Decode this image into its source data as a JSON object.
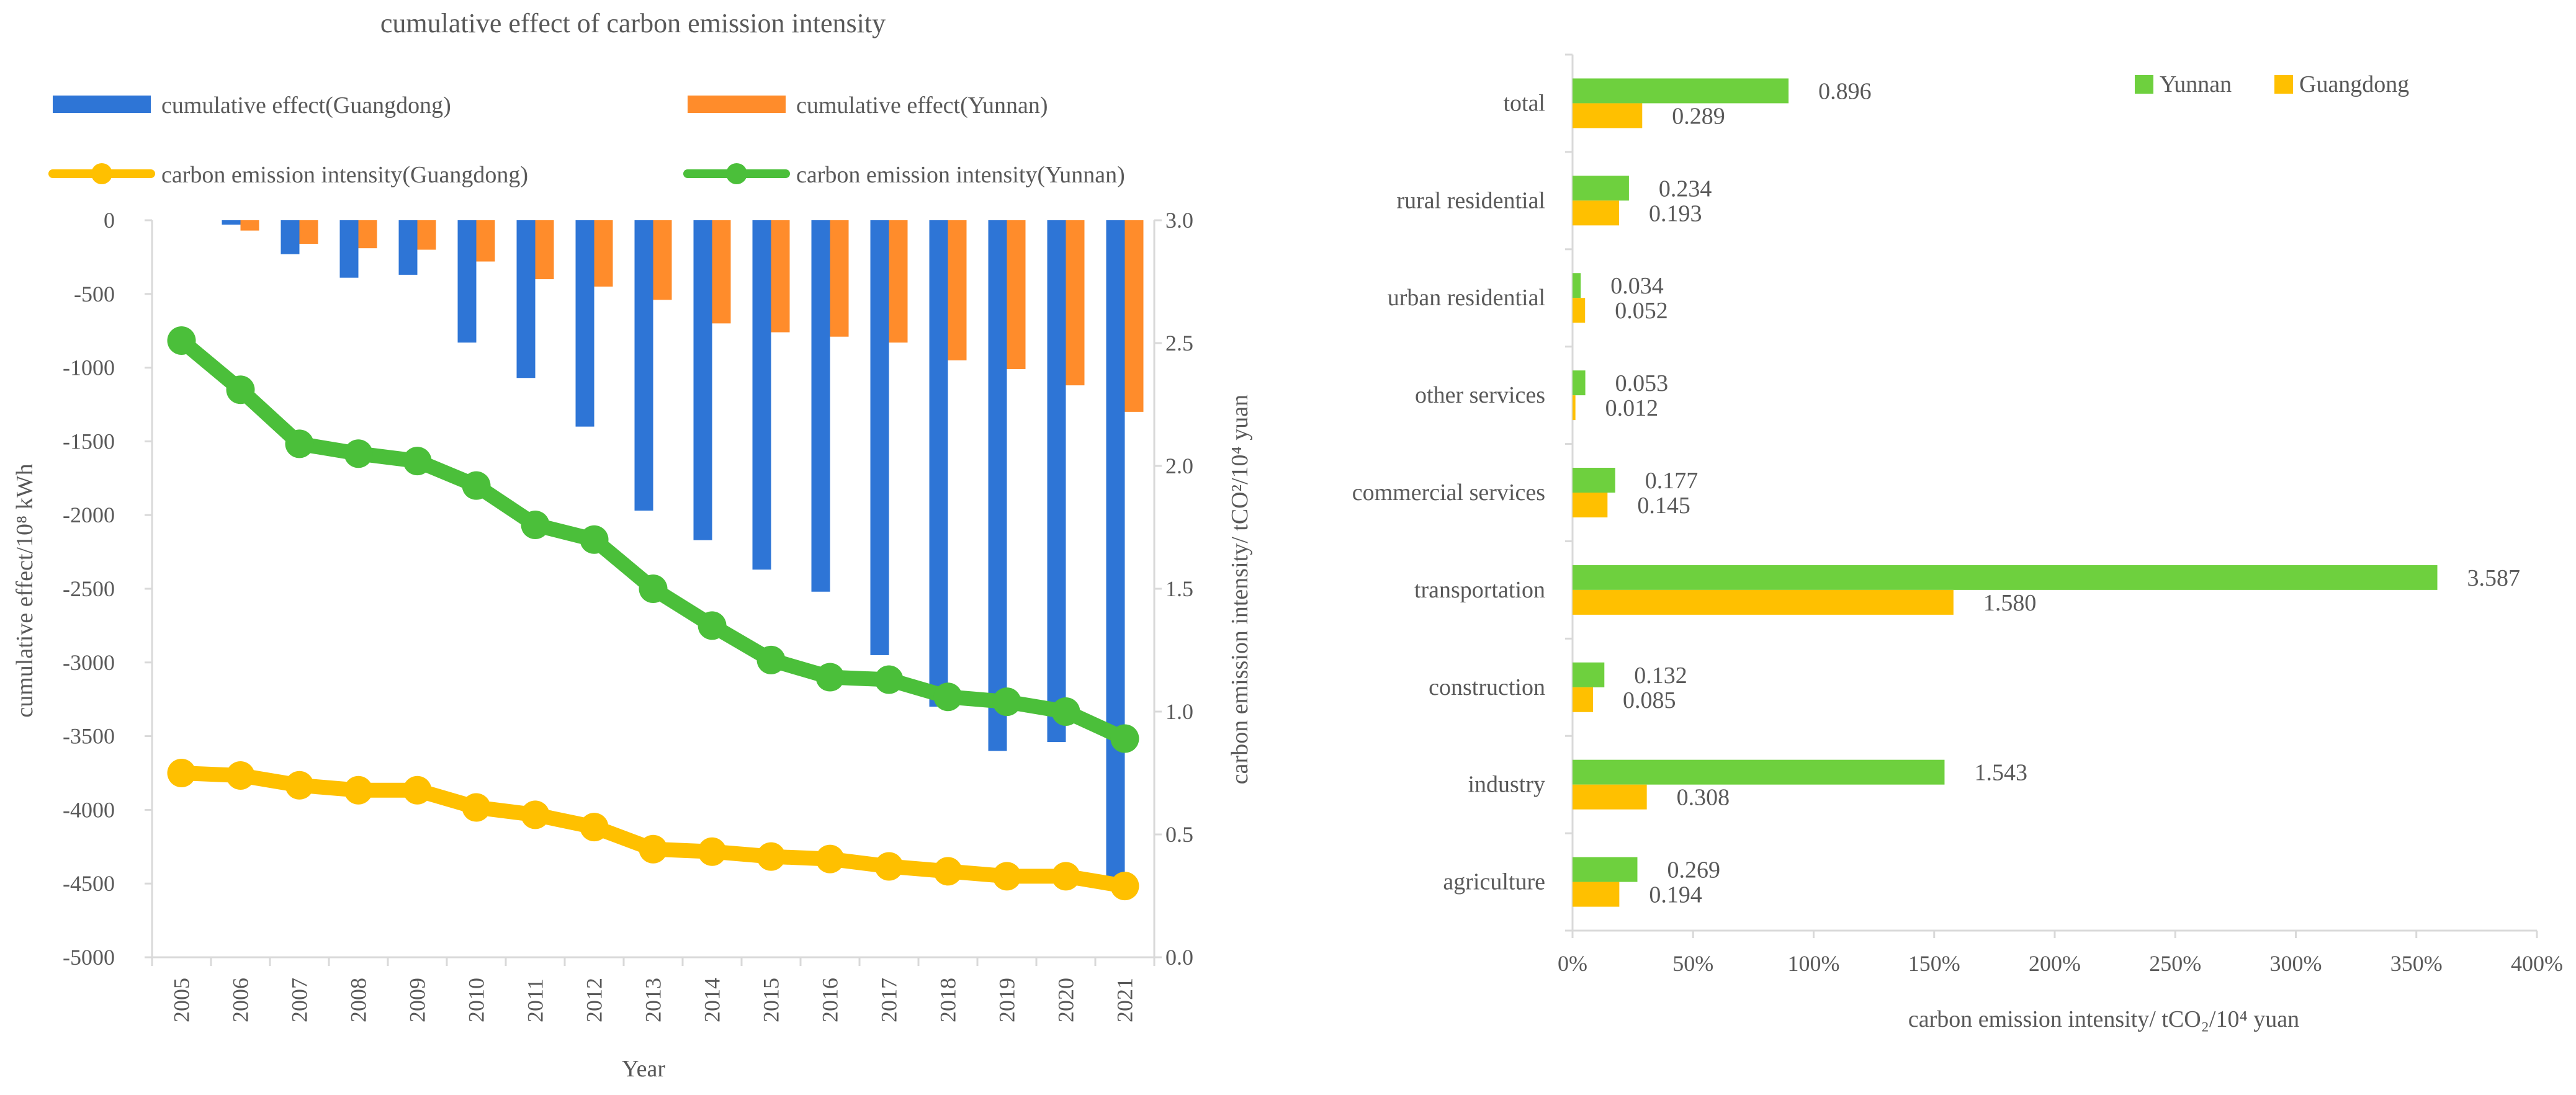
{
  "chart_data": [
    {
      "type": "bar+line",
      "title": "cumulative effect of carbon emission intensity",
      "xlabel": "Year",
      "ylabel_left": "cumulative effect/10⁸ kWh",
      "ylabel_right": "carbon emission intensity/ tCO²/10⁴ yuan",
      "ylim_left": [
        -5000,
        0
      ],
      "ylim_right": [
        0.0,
        3.0
      ],
      "yticks_left": [
        "0",
        "-500",
        "-1000",
        "-1500",
        "-2000",
        "-2500",
        "-3000",
        "-3500",
        "-4000",
        "-4500",
        "-5000"
      ],
      "yticks_right": [
        "3.0",
        "2.5",
        "2.0",
        "1.5",
        "1.0",
        "0.5",
        "0.0"
      ],
      "categories": [
        "2005",
        "2006",
        "2007",
        "2008",
        "2009",
        "2010",
        "2011",
        "2012",
        "2013",
        "2014",
        "2015",
        "2016",
        "2017",
        "2018",
        "2019",
        "2020",
        "2021"
      ],
      "bar_series": [
        {
          "name": "cumulative effect(Guangdong)",
          "color": "#2E75D6",
          "values": [
            0,
            -30,
            -230,
            -390,
            -370,
            -830,
            -1070,
            -1400,
            -1970,
            -2170,
            -2370,
            -2520,
            -2950,
            -3300,
            -3600,
            -3540,
            -4520
          ]
        },
        {
          "name": "cumulative effect(Yunnan)",
          "color": "#FF8C2B",
          "values": [
            0,
            -70,
            -160,
            -190,
            -200,
            -280,
            -400,
            -450,
            -540,
            -700,
            -760,
            -790,
            -830,
            -950,
            -1010,
            -1120,
            -1300
          ]
        }
      ],
      "line_series": [
        {
          "name": "carbon emission intensity(Guangdong)",
          "color": "#FFC000",
          "values": [
            0.75,
            0.74,
            0.7,
            0.68,
            0.68,
            0.61,
            0.58,
            0.53,
            0.44,
            0.43,
            0.41,
            0.4,
            0.37,
            0.35,
            0.33,
            0.33,
            0.29
          ]
        },
        {
          "name": "carbon emission intensity(Yunnan)",
          "color": "#4BBF3A",
          "values": [
            2.51,
            2.31,
            2.09,
            2.05,
            2.02,
            1.92,
            1.76,
            1.7,
            1.5,
            1.35,
            1.21,
            1.14,
            1.13,
            1.06,
            1.04,
            1.0,
            0.89
          ]
        }
      ]
    },
    {
      "type": "bar",
      "orientation": "horizontal",
      "xlabel": "carbon emission intensity/ tCO₂/10⁴ yuan",
      "xlim": [
        0,
        400
      ],
      "xticks": [
        "0%",
        "50%",
        "100%",
        "150%",
        "200%",
        "250%",
        "300%",
        "350%",
        "400%"
      ],
      "categories": [
        "total",
        "rural residential",
        "urban residential",
        "other services",
        "commercial services",
        "transportation",
        "construction",
        "industry",
        "agriculture"
      ],
      "series": [
        {
          "name": "Yunnan",
          "color": "#6ED03E",
          "values": [
            0.896,
            0.234,
            0.034,
            0.053,
            0.177,
            3.587,
            0.132,
            1.543,
            0.269
          ],
          "labels": [
            "0.896",
            "0.234",
            "0.034",
            "0.053",
            "0.177",
            "3.587",
            "0.132",
            "1.543",
            "0.269"
          ]
        },
        {
          "name": "Guangdong",
          "color": "#FFC000",
          "values": [
            0.289,
            0.193,
            0.052,
            0.012,
            0.145,
            1.58,
            0.085,
            0.308,
            0.194
          ],
          "labels": [
            "0.289",
            "0.193",
            "0.052",
            "0.012",
            "0.145",
            "1.580",
            "0.085",
            "0.308",
            "0.194"
          ]
        }
      ]
    }
  ]
}
